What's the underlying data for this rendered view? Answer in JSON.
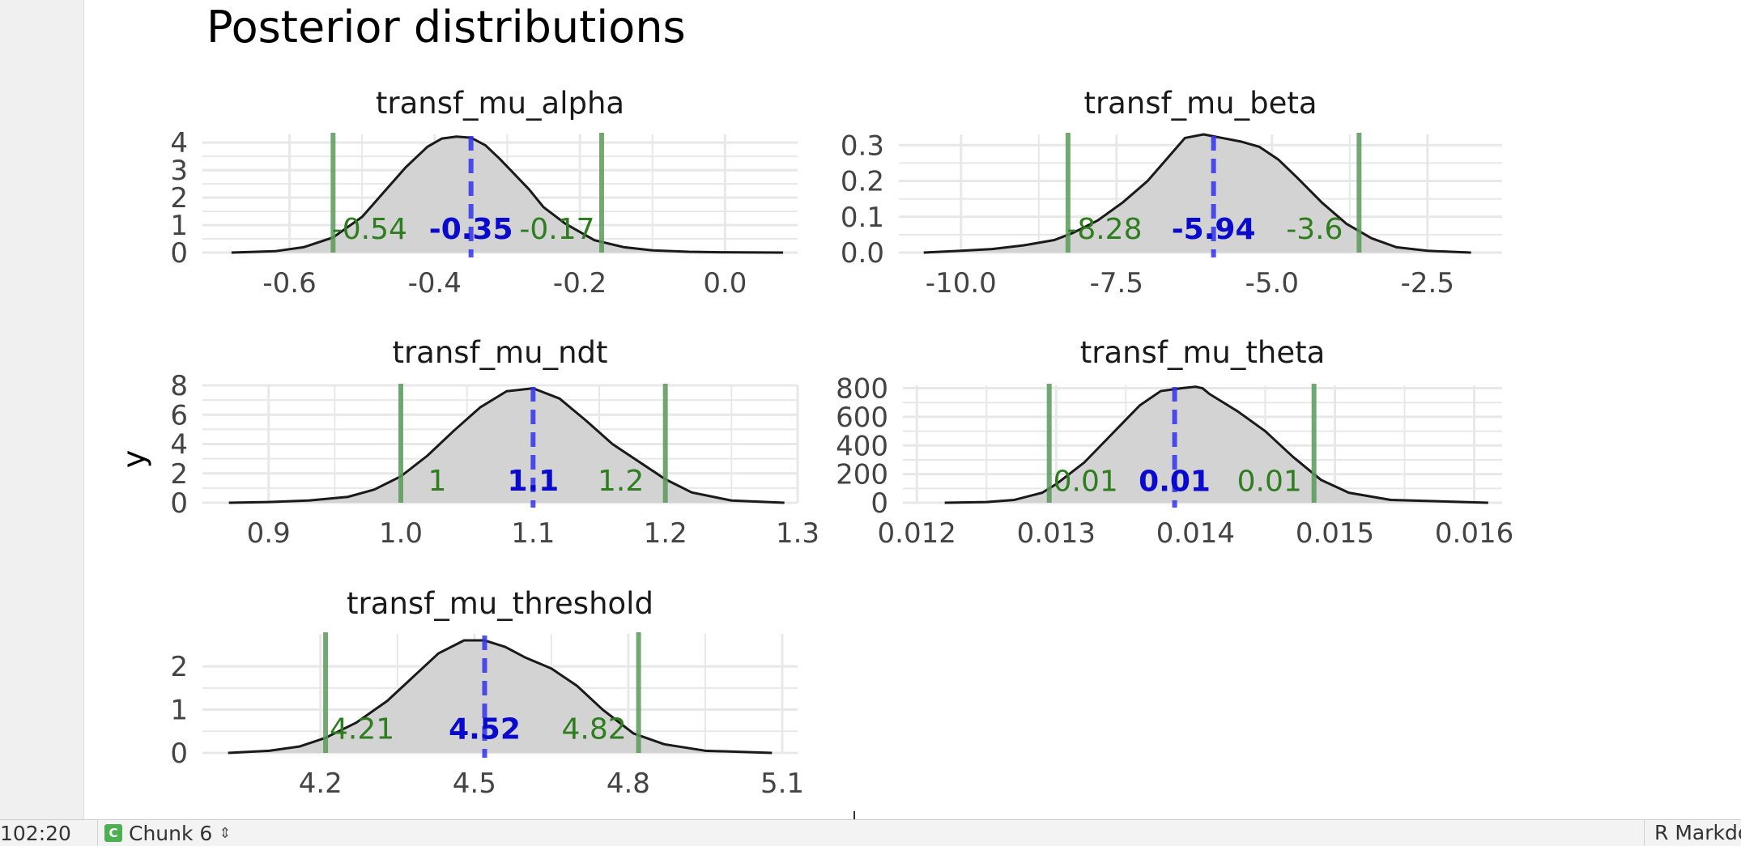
{
  "chart_data": {
    "type": "area",
    "title": "Posterior distributions",
    "ylabel": "y",
    "xlabel": "",
    "grid": true,
    "facets": [
      {
        "title": "transf_mu_alpha",
        "xlim": [
          -0.72,
          0.1
        ],
        "ylim": [
          0,
          4.3
        ],
        "xticks": [
          -0.6,
          -0.4,
          -0.2,
          0.0
        ],
        "xtick_labels": [
          "-0.6",
          "-0.4",
          "-0.2",
          "0.0"
        ],
        "yticks": [
          0,
          1,
          2,
          3,
          4
        ],
        "ytick_labels": [
          "0",
          "1",
          "2",
          "3",
          "4"
        ],
        "density": {
          "x": [
            -0.68,
            -0.62,
            -0.58,
            -0.54,
            -0.5,
            -0.47,
            -0.44,
            -0.41,
            -0.39,
            -0.37,
            -0.35,
            -0.33,
            -0.31,
            -0.29,
            -0.27,
            -0.25,
            -0.22,
            -0.18,
            -0.14,
            -0.1,
            -0.05,
            0.0,
            0.08
          ],
          "y": [
            0,
            0.05,
            0.2,
            0.55,
            1.3,
            2.2,
            3.1,
            3.85,
            4.15,
            4.22,
            4.18,
            3.9,
            3.4,
            2.85,
            2.3,
            1.65,
            1.05,
            0.45,
            0.2,
            0.08,
            0.03,
            0.01,
            0
          ]
        },
        "lower": -0.54,
        "median": -0.35,
        "upper": -0.17,
        "lower_label": "-0.54",
        "median_label": "-0.35",
        "upper_label": "-0.17",
        "label_y": 0.85
      },
      {
        "title": "transf_mu_beta",
        "xlim": [
          -11.0,
          -1.3
        ],
        "ylim": [
          0,
          0.33
        ],
        "xticks": [
          -10.0,
          -7.5,
          -5.0,
          -2.5
        ],
        "xtick_labels": [
          "-10.0",
          "-7.5",
          "-5.0",
          "-2.5"
        ],
        "yticks": [
          0.0,
          0.1,
          0.2,
          0.3
        ],
        "ytick_labels": [
          "0.0",
          "0.1",
          "0.2",
          "0.3"
        ],
        "density": {
          "x": [
            -10.6,
            -10.0,
            -9.5,
            -9.0,
            -8.5,
            -8.2,
            -7.8,
            -7.4,
            -7.0,
            -6.7,
            -6.4,
            -6.1,
            -5.8,
            -5.5,
            -5.2,
            -4.9,
            -4.6,
            -4.2,
            -3.8,
            -3.4,
            -3.0,
            -2.5,
            -1.8
          ],
          "y": [
            0,
            0.005,
            0.01,
            0.02,
            0.035,
            0.055,
            0.09,
            0.14,
            0.2,
            0.26,
            0.32,
            0.33,
            0.32,
            0.31,
            0.295,
            0.26,
            0.21,
            0.14,
            0.08,
            0.04,
            0.015,
            0.005,
            0
          ]
        },
        "lower": -8.28,
        "median": -5.94,
        "upper": -3.6,
        "lower_label": "-8.28",
        "median_label": "-5.94",
        "upper_label": "-3.6",
        "label_y": 0.065
      },
      {
        "title": "transf_mu_ndt",
        "xlim": [
          0.85,
          1.3
        ],
        "ylim": [
          0,
          8
        ],
        "xticks": [
          0.9,
          1.0,
          1.1,
          1.2,
          1.3
        ],
        "xtick_labels": [
          "0.9",
          "1.0",
          "1.1",
          "1.2",
          "1.3"
        ],
        "yticks": [
          0,
          2,
          4,
          6,
          8
        ],
        "ytick_labels": [
          "0",
          "2",
          "4",
          "6",
          "8"
        ],
        "density": {
          "x": [
            0.87,
            0.9,
            0.93,
            0.96,
            0.98,
            1.0,
            1.02,
            1.04,
            1.06,
            1.08,
            1.1,
            1.12,
            1.14,
            1.16,
            1.18,
            1.2,
            1.22,
            1.25,
            1.29
          ],
          "y": [
            0,
            0.05,
            0.15,
            0.4,
            0.9,
            1.8,
            3.2,
            4.9,
            6.5,
            7.6,
            7.8,
            7.1,
            5.6,
            4.0,
            2.8,
            1.6,
            0.7,
            0.15,
            0
          ]
        },
        "lower": 1.0,
        "median": 1.1,
        "upper": 1.2,
        "lower_label": "1",
        "median_label": "1.1",
        "upper_label": "1.2",
        "label_y": 1.5
      },
      {
        "title": "transf_mu_theta",
        "xlim": [
          0.0119,
          0.0162
        ],
        "ylim": [
          0,
          820
        ],
        "xticks": [
          0.012,
          0.013,
          0.014,
          0.015,
          0.016
        ],
        "xtick_labels": [
          "0.012",
          "0.013",
          "0.014",
          "0.015",
          "0.016"
        ],
        "yticks": [
          0,
          200,
          400,
          600,
          800
        ],
        "ytick_labels": [
          "0",
          "200",
          "400",
          "600",
          "800"
        ],
        "density": {
          "x": [
            0.0122,
            0.0125,
            0.0127,
            0.0129,
            0.013,
            0.0132,
            0.0134,
            0.0136,
            0.01375,
            0.0139,
            0.014,
            0.01405,
            0.0141,
            0.0143,
            0.0145,
            0.0147,
            0.0149,
            0.0151,
            0.0154,
            0.0161
          ],
          "y": [
            0,
            5,
            20,
            70,
            130,
            280,
            480,
            680,
            780,
            800,
            810,
            800,
            760,
            640,
            500,
            320,
            160,
            70,
            20,
            0
          ]
        },
        "lower": 0.01295,
        "median": 0.01385,
        "upper": 0.01485,
        "lower_label": "0.01",
        "median_label": "0.01",
        "upper_label": "0.01",
        "label_y": 150
      },
      {
        "title": "transf_mu_threshold",
        "xlim": [
          3.97,
          5.13
        ],
        "ylim": [
          0,
          2.75
        ],
        "xticks": [
          4.2,
          4.5,
          4.8,
          5.1
        ],
        "xtick_labels": [
          "4.2",
          "4.5",
          "4.8",
          "5.1"
        ],
        "yticks": [
          0,
          1,
          2
        ],
        "ytick_labels": [
          "0",
          "1",
          "2"
        ],
        "density": {
          "x": [
            4.02,
            4.1,
            4.16,
            4.21,
            4.27,
            4.33,
            4.38,
            4.43,
            4.48,
            4.52,
            4.56,
            4.6,
            4.65,
            4.7,
            4.75,
            4.81,
            4.87,
            4.95,
            5.08
          ],
          "y": [
            0,
            0.05,
            0.15,
            0.35,
            0.7,
            1.2,
            1.75,
            2.3,
            2.6,
            2.6,
            2.45,
            2.2,
            1.95,
            1.55,
            1.0,
            0.45,
            0.2,
            0.05,
            0
          ]
        },
        "lower": 4.21,
        "median": 4.52,
        "upper": 4.82,
        "lower_label": "4.21",
        "median_label": "4.52",
        "upper_label": "4.82",
        "label_y": 0.55
      }
    ],
    "colors": {
      "interval": "#5a9a5a",
      "interval_label": "#2e7d1f",
      "median": "#3333ee",
      "median_label": "#0a0acc",
      "fill": "#d3d3d3",
      "line": "#1a1a1a",
      "grid": "#e8e8e8"
    }
  },
  "status_bar": {
    "position": "102:20",
    "chunk_icon": "C",
    "chunk_label": "Chunk 6",
    "chunk_updown_icon": "up-down-arrows-icon",
    "doc_type": "R Markdown"
  }
}
